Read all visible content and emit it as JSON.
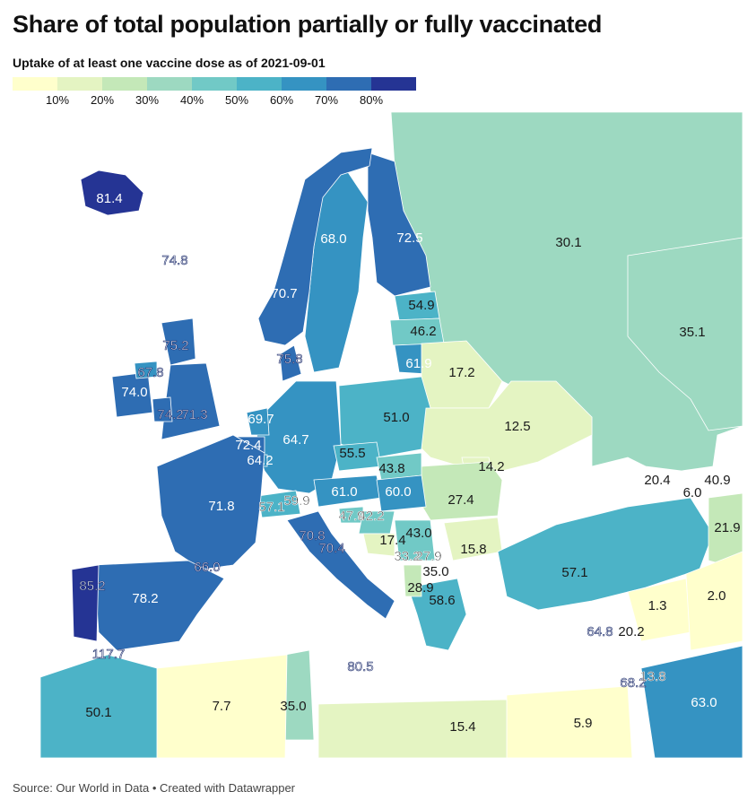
{
  "title": "Share of total population partially or fully vaccinated",
  "subtitle": "Uptake of at least one vaccine dose as of 2021-09-01",
  "legend": {
    "colors": [
      "#ffffcc",
      "#e4f4c2",
      "#c4e8b8",
      "#9dd9c1",
      "#71c9c6",
      "#4cb3c7",
      "#3593c2",
      "#2e6db3",
      "#253494"
    ],
    "ticks": [
      "10%",
      "20%",
      "30%",
      "40%",
      "50%",
      "60%",
      "70%",
      "80%"
    ]
  },
  "regions": [
    {
      "id": "iceland",
      "value": 81.4,
      "label": "81.4"
    },
    {
      "id": "faroe",
      "value": 74.8,
      "label": "74.8"
    },
    {
      "id": "norway",
      "value": 70.7,
      "label": "70.7"
    },
    {
      "id": "sweden",
      "value": 68.0,
      "label": "68.0"
    },
    {
      "id": "finland",
      "value": 72.5,
      "label": "72.5"
    },
    {
      "id": "russia",
      "value": 30.1,
      "label": "30.1"
    },
    {
      "id": "kazakhstan",
      "value": 35.1,
      "label": "35.1"
    },
    {
      "id": "estonia",
      "value": 54.9,
      "label": "54.9"
    },
    {
      "id": "latvia",
      "value": 46.2,
      "label": "46.2"
    },
    {
      "id": "lithuania",
      "value": 61.9,
      "label": "61.9"
    },
    {
      "id": "belarus",
      "value": 17.2,
      "label": "17.2"
    },
    {
      "id": "denmark",
      "value": 75.8,
      "label": "75.8"
    },
    {
      "id": "scotland",
      "value": 75.2,
      "label": "75.2"
    },
    {
      "id": "northern-ireland",
      "value": 67.8,
      "label": "67.8"
    },
    {
      "id": "ireland",
      "value": 74.0,
      "label": "74.0"
    },
    {
      "id": "wales",
      "value": 74.2,
      "label": "74.2"
    },
    {
      "id": "england",
      "value": 71.3,
      "label": "71.3"
    },
    {
      "id": "netherlands",
      "value": 69.7,
      "label": "69.7"
    },
    {
      "id": "belgium",
      "value": 72.4,
      "label": "72.4"
    },
    {
      "id": "luxembourg",
      "value": 64.2,
      "label": "64.2"
    },
    {
      "id": "germany",
      "value": 64.7,
      "label": "64.7"
    },
    {
      "id": "poland",
      "value": 51.0,
      "label": "51.0"
    },
    {
      "id": "ukraine",
      "value": 12.5,
      "label": "12.5"
    },
    {
      "id": "czechia",
      "value": 55.5,
      "label": "55.5"
    },
    {
      "id": "slovakia",
      "value": 43.8,
      "label": "43.8"
    },
    {
      "id": "moldova",
      "value": 14.2,
      "label": "14.2"
    },
    {
      "id": "france",
      "value": 71.8,
      "label": "71.8"
    },
    {
      "id": "switzerland",
      "value": 57.1,
      "label": "57.1"
    },
    {
      "id": "liechtenstein",
      "value": 59.9,
      "label": "59.9"
    },
    {
      "id": "austria",
      "value": 61.0,
      "label": "61.0"
    },
    {
      "id": "hungary",
      "value": 60.0,
      "label": "60.0"
    },
    {
      "id": "romania",
      "value": 27.4,
      "label": "27.4"
    },
    {
      "id": "slovenia",
      "value": 47.9,
      "label": "47.9"
    },
    {
      "id": "croatia",
      "value": 42.2,
      "label": "42.2"
    },
    {
      "id": "bosnia",
      "value": 17.4,
      "label": "17.4"
    },
    {
      "id": "serbia",
      "value": 43.0,
      "label": "43.0"
    },
    {
      "id": "montenegro",
      "value": 33.2,
      "label": "33.2"
    },
    {
      "id": "kosovo",
      "value": 27.9,
      "label": "27.9"
    },
    {
      "id": "bulgaria",
      "value": 15.8,
      "label": "15.8"
    },
    {
      "id": "north-macedonia",
      "value": 35.0,
      "label": "35.0"
    },
    {
      "id": "albania",
      "value": 28.9,
      "label": "28.9"
    },
    {
      "id": "greece",
      "value": 58.6,
      "label": "58.6"
    },
    {
      "id": "monaco",
      "value": 70.8,
      "label": "70.8"
    },
    {
      "id": "italy",
      "value": 70.4,
      "label": "70.4"
    },
    {
      "id": "andorra",
      "value": 65.6,
      "label": "65.6"
    },
    {
      "id": "spain",
      "value": 78.2,
      "label": "78.2"
    },
    {
      "id": "portugal",
      "value": 85.2,
      "label": "85.2"
    },
    {
      "id": "basque",
      "value": 66.0,
      "label": "66.0"
    },
    {
      "id": "gibraltar",
      "value": 117.7,
      "label": "117.7"
    },
    {
      "id": "malta",
      "value": 80.5,
      "label": "80.5"
    },
    {
      "id": "morocco",
      "value": 50.1,
      "label": "50.1"
    },
    {
      "id": "algeria",
      "value": 7.7,
      "label": "7.7"
    },
    {
      "id": "tunisia",
      "value": 35.0,
      "label": "35.0"
    },
    {
      "id": "libya",
      "value": 15.4,
      "label": "15.4"
    },
    {
      "id": "egypt",
      "value": 5.9,
      "label": "5.9"
    },
    {
      "id": "turkey",
      "value": 57.1,
      "label": "57.1"
    },
    {
      "id": "georgia",
      "value": 20.4,
      "label": "20.4"
    },
    {
      "id": "armenia",
      "value": 6.0,
      "label": "6.0"
    },
    {
      "id": "azerbaijan",
      "value": 40.9,
      "label": "40.9"
    },
    {
      "id": "iran",
      "value": 21.9,
      "label": "21.9"
    },
    {
      "id": "iraq",
      "value": 2.0,
      "label": "2.0"
    },
    {
      "id": "syria",
      "value": 1.3,
      "label": "1.3"
    },
    {
      "id": "cyprus",
      "value": 64.8,
      "label": "64.8"
    },
    {
      "id": "lebanon",
      "value": 20.2,
      "label": "20.2"
    },
    {
      "id": "israel",
      "value": 68.2,
      "label": "68.2"
    },
    {
      "id": "jordan",
      "value": 13.8,
      "label": "13.8"
    },
    {
      "id": "saudi-arabia",
      "value": 63.0,
      "label": "63.0"
    }
  ],
  "source": "Source: Our World in Data • Created with Datawrapper"
}
